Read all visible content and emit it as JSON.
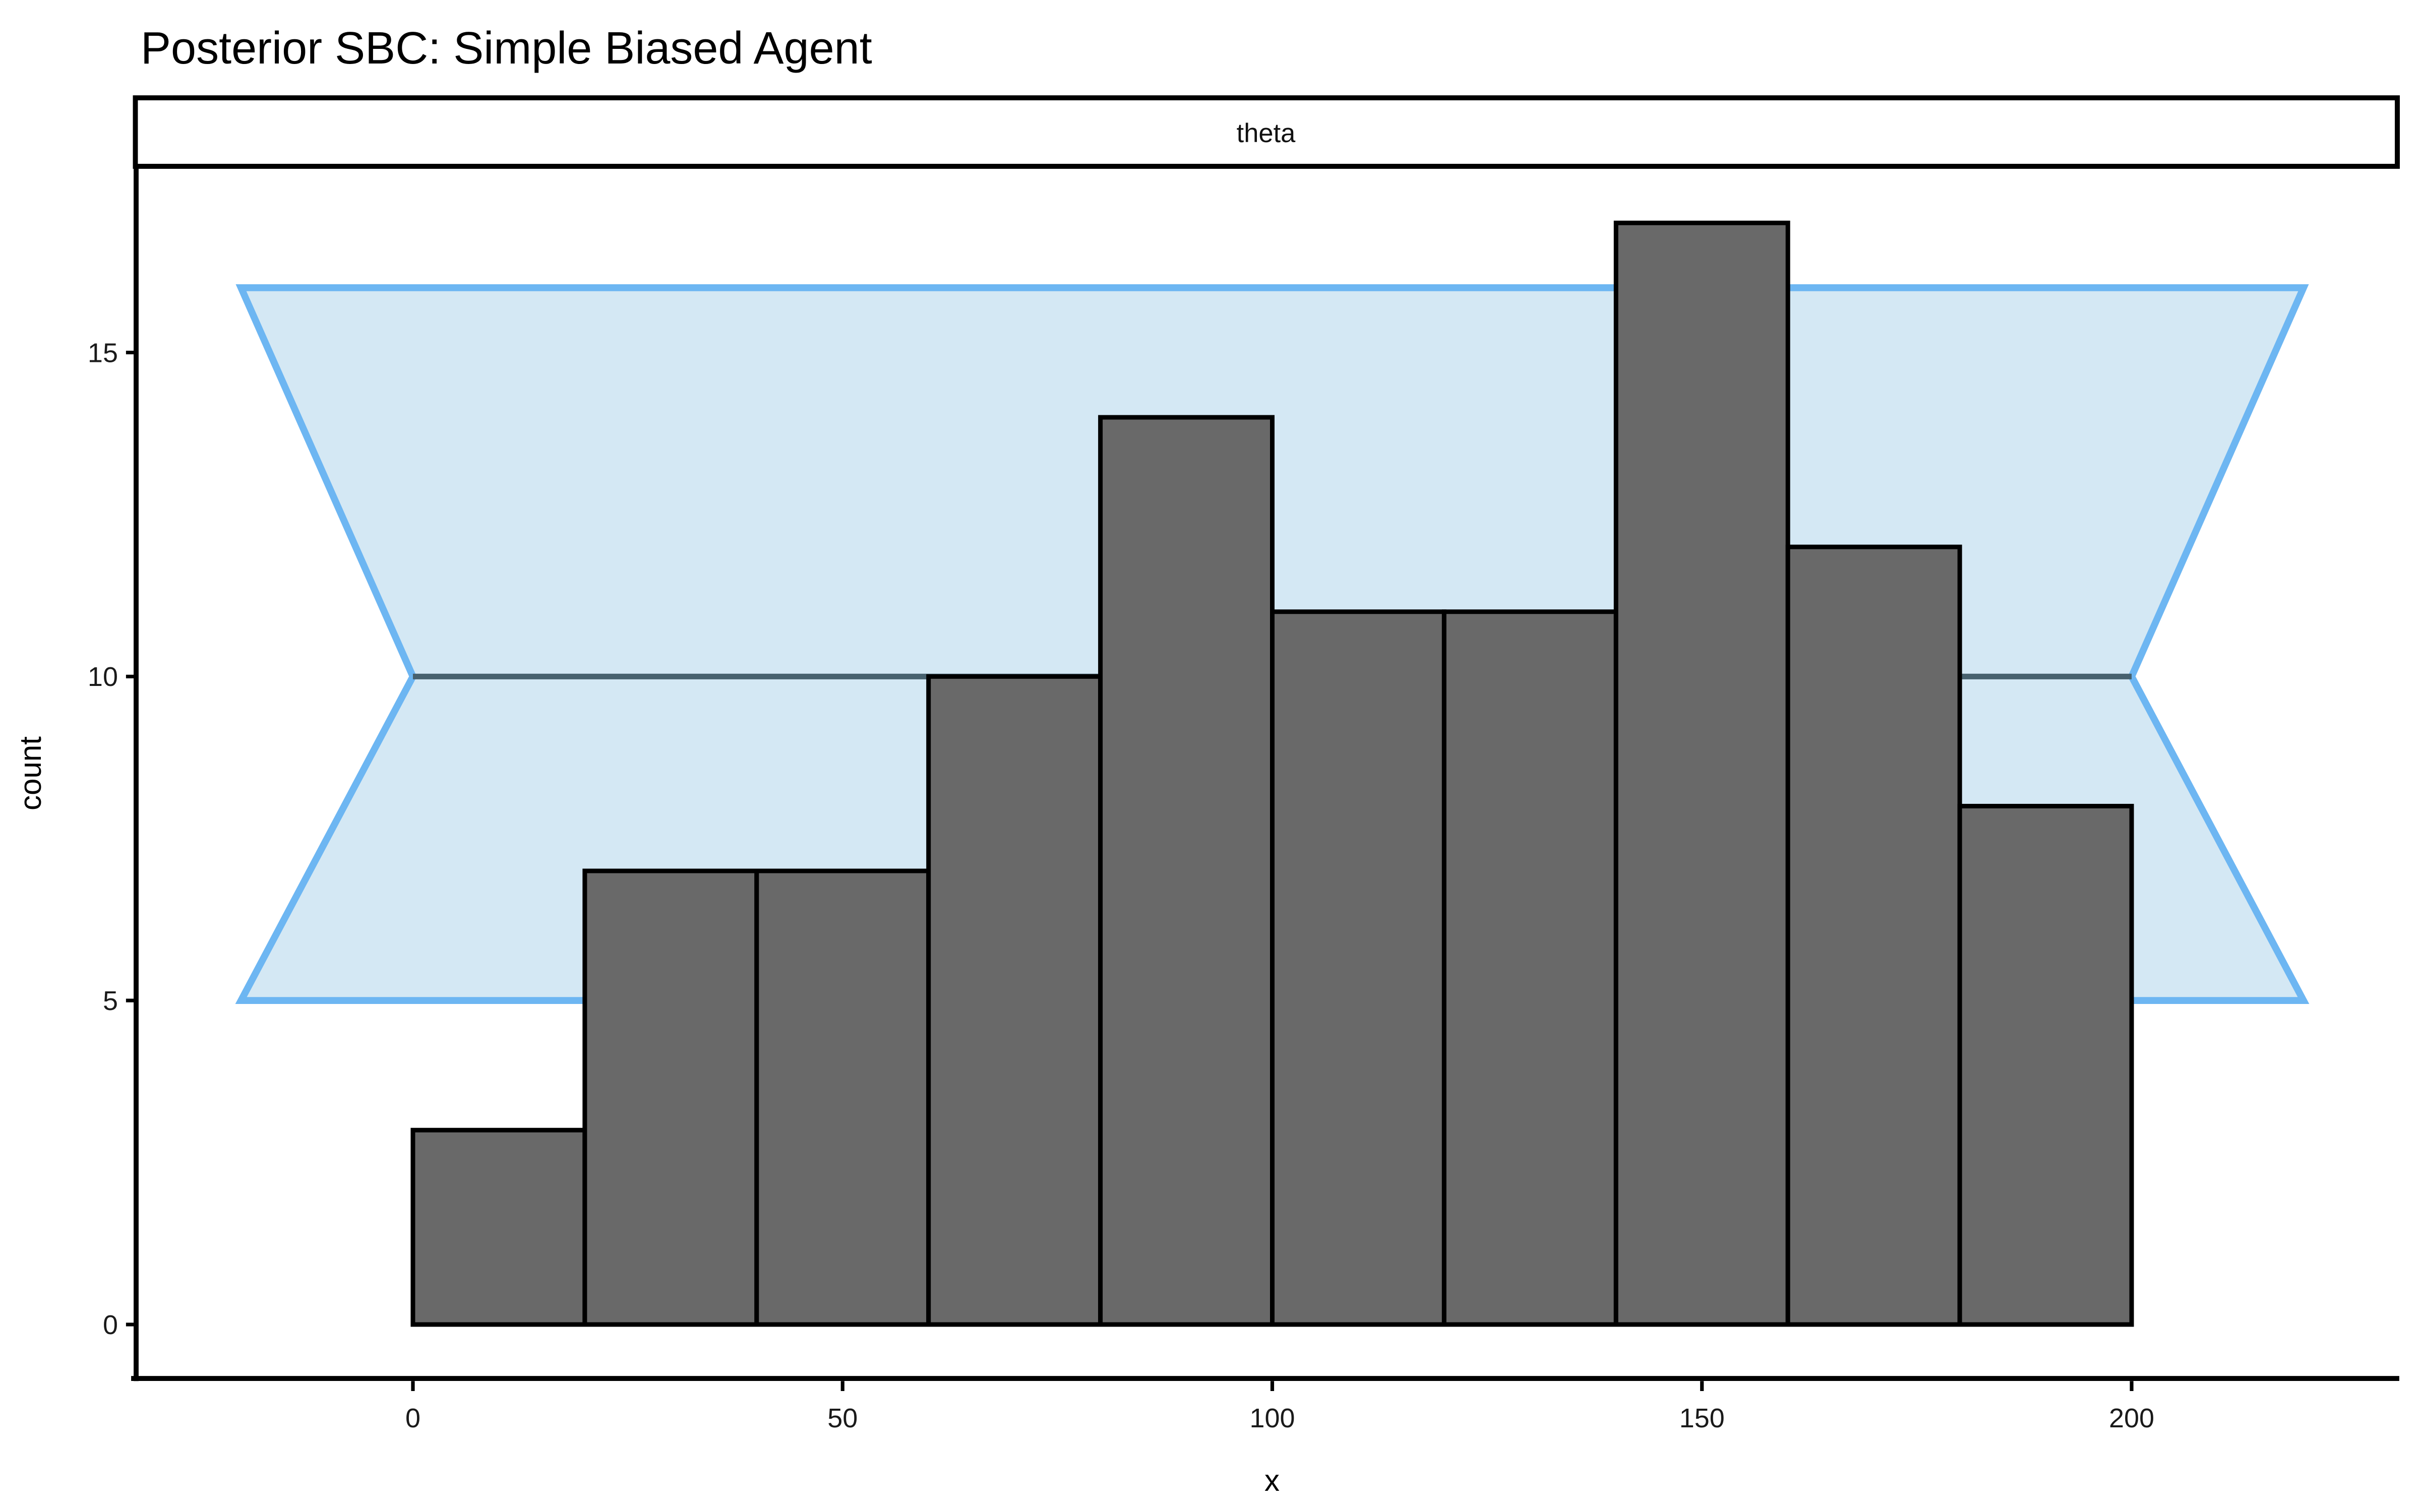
{
  "title": "Posterior SBC: Simple Biased Agent",
  "facet_label": "theta",
  "x_axis": {
    "label": "x"
  },
  "y_axis": {
    "label": "count"
  },
  "chart_data": {
    "type": "bar",
    "subtype": "histogram",
    "title": "Posterior SBC: Simple Biased Agent",
    "facet": "theta",
    "xlabel": "x",
    "ylabel": "count",
    "bin_width": 20,
    "bin_edges": [
      0,
      20,
      40,
      60,
      80,
      100,
      120,
      140,
      160,
      180,
      200
    ],
    "counts": [
      3,
      7,
      7,
      10,
      14,
      11,
      11,
      17,
      12,
      8
    ],
    "total_draws": 100,
    "x_ticks": [
      0,
      50,
      100,
      150,
      200
    ],
    "y_ticks": [
      0,
      5,
      10,
      15
    ],
    "xlim": [
      -32,
      231
    ],
    "ylim": [
      -0.87,
      17.9
    ],
    "grid": "off",
    "legend": "none",
    "confidence_band": {
      "y_lower": 5,
      "y_median": 10,
      "y_upper": 16,
      "x_outer_left": -20,
      "x_inner_left": 0,
      "x_inner_right": 200,
      "x_outer_right": 220
    },
    "colors": {
      "bar_fill": "#696969",
      "bar_stroke": "#000000",
      "band_fill": "#d4e8f4",
      "band_stroke": "#6db6f2",
      "median_line": "#47616e",
      "axis_line": "#000000",
      "strip_fill": "#ffffff",
      "strip_stroke": "#000000"
    }
  }
}
